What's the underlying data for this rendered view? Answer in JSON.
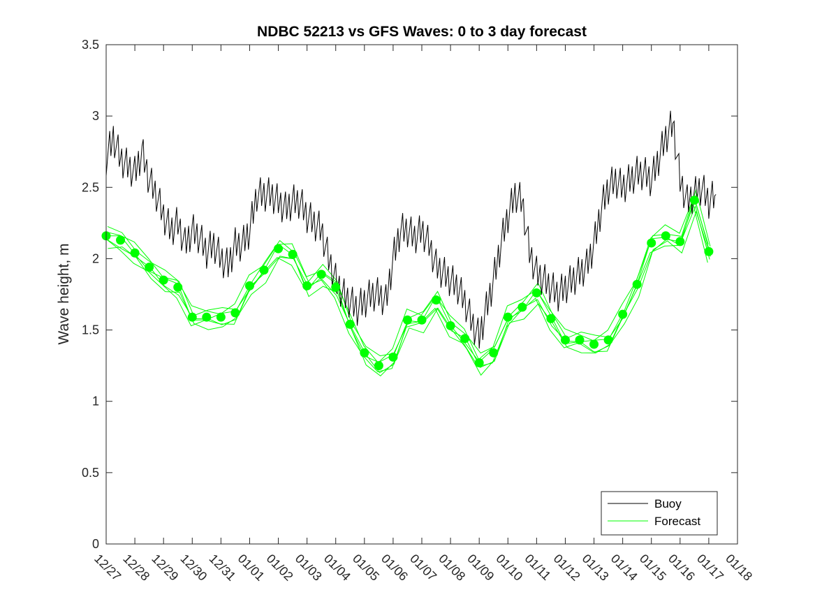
{
  "chart_data": {
    "type": "line",
    "title": "NDBC 52213 vs GFS Waves: 0 to 3 day forecast",
    "xlabel": "",
    "ylabel": "Wave height, m",
    "xlim": [
      0,
      22
    ],
    "ylim": [
      0,
      3.5
    ],
    "yticks": [
      0,
      0.5,
      1,
      1.5,
      2,
      2.5,
      3,
      3.5
    ],
    "yticklabels": [
      "0",
      "0.5",
      "1",
      "1.5",
      "2",
      "2.5",
      "3",
      "3.5"
    ],
    "xticklabels": [
      "12/27",
      "12/28",
      "12/29",
      "12/30",
      "12/31",
      "01/01",
      "01/02",
      "01/03",
      "01/04",
      "01/05",
      "01/06",
      "01/07",
      "01/08",
      "01/09",
      "01/10",
      "01/11",
      "01/12",
      "01/13",
      "01/14",
      "01/15",
      "01/16",
      "01/17",
      "01/18"
    ],
    "grid": false,
    "legend": {
      "position": "bottom-right",
      "entries": [
        "Buoy",
        "Forecast"
      ]
    },
    "colors": {
      "buoy": "#000000",
      "forecast": "#00ff00",
      "axis": "#262626"
    },
    "series": [
      {
        "name": "Buoy",
        "x": [
          0.0,
          0.25,
          0.5,
          0.75,
          1.0,
          1.25,
          1.5,
          1.75,
          2.0,
          2.25,
          2.5,
          2.75,
          3.0,
          3.25,
          3.5,
          3.75,
          4.0,
          4.25,
          4.5,
          4.75,
          5.0,
          5.25,
          5.5,
          5.75,
          6.0,
          6.25,
          6.5,
          6.75,
          7.0,
          7.25,
          7.5,
          7.75,
          8.0,
          8.25,
          8.5,
          8.75,
          9.0,
          9.25,
          9.5,
          9.75,
          10.0,
          10.25,
          10.5,
          10.75,
          11.0,
          11.25,
          11.5,
          11.75,
          12.0,
          12.25,
          12.5,
          12.75,
          13.0,
          13.25,
          13.5,
          13.75,
          14.0,
          14.25,
          14.5,
          14.75,
          15.0,
          15.25,
          15.5,
          15.75,
          16.0,
          16.25,
          16.5,
          16.75,
          17.0,
          17.25,
          17.5,
          17.75,
          18.0,
          18.25,
          18.5,
          18.75,
          19.0,
          19.25,
          19.5,
          19.75,
          20.0,
          20.25,
          20.5,
          20.75,
          21.0,
          21.25
        ],
        "values": [
          2.7,
          2.85,
          2.7,
          2.65,
          2.6,
          2.75,
          2.55,
          2.45,
          2.3,
          2.2,
          2.25,
          2.1,
          2.2,
          2.15,
          2.05,
          2.1,
          2.0,
          1.95,
          2.1,
          2.1,
          2.2,
          2.45,
          2.45,
          2.45,
          2.4,
          2.35,
          2.4,
          2.4,
          2.3,
          2.25,
          2.2,
          2.0,
          1.85,
          1.75,
          1.7,
          1.65,
          1.7,
          1.75,
          1.75,
          1.7,
          2.0,
          2.2,
          2.2,
          2.15,
          2.2,
          2.1,
          1.95,
          1.9,
          1.85,
          1.8,
          1.7,
          1.55,
          1.45,
          1.65,
          1.85,
          2.1,
          2.3,
          2.45,
          2.4,
          2.05,
          1.9,
          1.85,
          1.8,
          1.75,
          1.8,
          1.85,
          1.9,
          1.95,
          2.1,
          2.35,
          2.5,
          2.55,
          2.5,
          2.55,
          2.6,
          2.6,
          2.55,
          2.7,
          2.85,
          2.95,
          2.55,
          2.4,
          2.45,
          2.5,
          2.4,
          2.45
        ]
      },
      {
        "name": "Forecast",
        "x": [
          0.0,
          0.5,
          1.0,
          1.5,
          2.0,
          2.5,
          3.0,
          3.5,
          4.0,
          4.5,
          5.0,
          5.5,
          6.0,
          6.5,
          7.0,
          7.5,
          8.0,
          8.5,
          9.0,
          9.5,
          10.0,
          10.5,
          11.0,
          11.5,
          12.0,
          12.5,
          13.0,
          13.5,
          14.0,
          14.5,
          15.0,
          15.5,
          16.0,
          16.5,
          17.0,
          17.5,
          18.0,
          18.5,
          19.0,
          19.5,
          20.0,
          20.5,
          21.0
        ],
        "values": [
          2.16,
          2.13,
          2.04,
          1.94,
          1.85,
          1.8,
          1.59,
          1.59,
          1.59,
          1.62,
          1.81,
          1.92,
          2.07,
          2.03,
          1.81,
          1.89,
          1.8,
          1.54,
          1.34,
          1.25,
          1.31,
          1.57,
          1.57,
          1.71,
          1.53,
          1.44,
          1.27,
          1.34,
          1.59,
          1.66,
          1.76,
          1.58,
          1.43,
          1.43,
          1.4,
          1.43,
          1.61,
          1.82,
          2.11,
          2.16,
          2.12,
          2.41,
          2.05
        ],
        "marker_x": [
          0.0,
          0.5,
          1.0,
          1.5,
          2.0,
          2.5,
          3.0,
          3.5,
          4.0,
          4.5,
          5.0,
          5.5,
          6.0,
          6.5,
          7.0,
          7.5,
          8.0,
          8.5,
          9.0,
          9.5,
          10.0,
          10.5,
          11.0,
          11.5,
          12.0,
          12.5,
          13.0,
          13.5,
          14.0,
          14.5,
          15.0,
          15.5,
          16.0,
          16.5,
          17.0,
          17.5,
          18.0,
          18.5,
          19.0,
          19.5,
          20.0,
          20.5,
          21.0
        ],
        "marker_values": [
          2.16,
          2.13,
          2.04,
          1.94,
          1.85,
          1.8,
          1.59,
          1.59,
          1.59,
          1.62,
          1.81,
          1.92,
          2.07,
          2.03,
          1.81,
          1.89,
          1.8,
          1.54,
          1.34,
          1.25,
          1.31,
          1.57,
          1.57,
          1.71,
          1.53,
          1.44,
          1.27,
          1.34,
          1.59,
          1.66,
          1.76,
          1.58,
          1.43,
          1.43,
          1.4,
          1.43,
          1.61,
          1.82,
          2.11,
          2.16,
          2.12,
          2.41,
          2.05
        ]
      }
    ]
  }
}
